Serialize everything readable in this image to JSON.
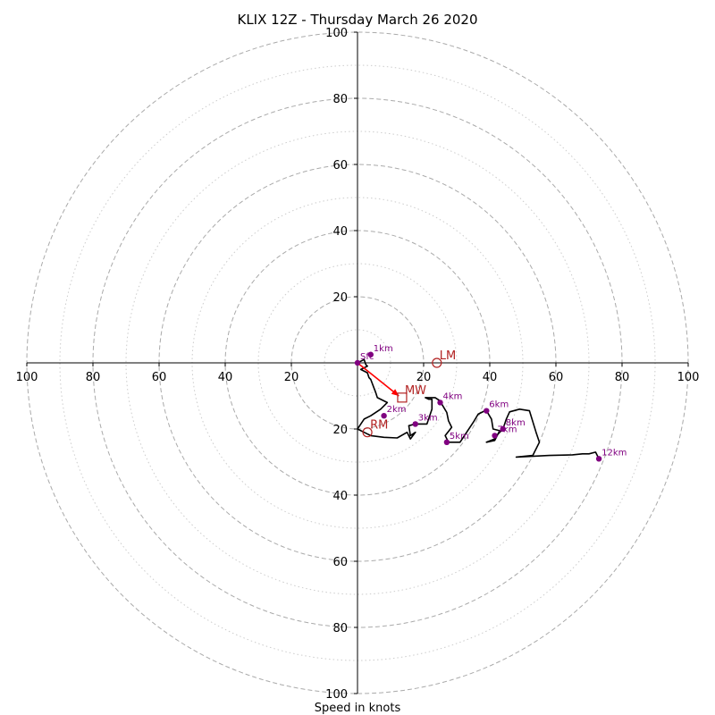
{
  "chart_data": {
    "type": "line",
    "title": "KLIX 12Z - Thursday March 26 2020",
    "xlabel": "Speed in knots",
    "ring_max": 100,
    "major_rings": [
      20,
      40,
      60,
      80,
      100
    ],
    "minor_rings": [
      10,
      30,
      50,
      70,
      90
    ],
    "x_tick_labels": [
      "100",
      "80",
      "60",
      "40",
      "20",
      "20",
      "40",
      "60",
      "80",
      "100"
    ],
    "x_tick_values": [
      -100,
      -80,
      -60,
      -40,
      -20,
      20,
      40,
      60,
      80,
      100
    ],
    "y_tick_labels": [
      "100",
      "80",
      "60",
      "40",
      "20",
      "20",
      "40",
      "60",
      "80",
      "100"
    ],
    "y_tick_values": [
      100,
      80,
      60,
      40,
      20,
      -20,
      -40,
      -60,
      -80,
      -100
    ],
    "hodograph_u": [
      0,
      2,
      2.5,
      3,
      1,
      3,
      3.5,
      4,
      5.5,
      6,
      9,
      7,
      4,
      2,
      1,
      0,
      2,
      3,
      4,
      8,
      12,
      15,
      16,
      17.5,
      16,
      15.5,
      17.5,
      19,
      21,
      22.5,
      22.5,
      21.5,
      20.5,
      23.5,
      25,
      25.5,
      27,
      27.5,
      28.5,
      26.5,
      27.5,
      31,
      33,
      35,
      36.5,
      38.5,
      39,
      40.5,
      41,
      43,
      41.5,
      39,
      41.5,
      42,
      44,
      45,
      46,
      49,
      52,
      54,
      55,
      53,
      48,
      58,
      65,
      68,
      70,
      72,
      73
    ],
    "hodograph_v": [
      0,
      1,
      -0.5,
      -1,
      -2,
      -3,
      -4.5,
      -5,
      -9,
      -10.5,
      -12,
      -14,
      -16,
      -17,
      -18.5,
      -20,
      -21,
      -21.5,
      -22,
      -22.5,
      -22.7,
      -21,
      -23,
      -21,
      -22,
      -19,
      -18.5,
      -18.5,
      -18.5,
      -14,
      -11,
      -11,
      -10.5,
      -10.5,
      -11.5,
      -12.5,
      -15,
      -17.5,
      -19.5,
      -22,
      -24,
      -24,
      -21,
      -18,
      -15.5,
      -14.5,
      -14.5,
      -17,
      -20,
      -20.5,
      -23.5,
      -24,
      -23,
      -22,
      -20,
      -17,
      -14.8,
      -14,
      -14.5,
      -21,
      -24,
      -28,
      -28.5,
      -28,
      -27.8,
      -27.5,
      -27.5,
      -27,
      -29
    ],
    "height_markers": [
      {
        "label": "Sfc",
        "u": 0,
        "v": 0
      },
      {
        "label": "1km",
        "u": 4,
        "v": 2.5
      },
      {
        "label": "2km",
        "u": 8,
        "v": -16
      },
      {
        "label": "3km",
        "u": 17.5,
        "v": -18.5
      },
      {
        "label": "4km",
        "u": 25,
        "v": -12
      },
      {
        "label": "5km",
        "u": 27,
        "v": -24
      },
      {
        "label": "6km",
        "u": 39,
        "v": -14.5
      },
      {
        "label": "7km",
        "u": 41.5,
        "v": -22
      },
      {
        "label": "8km",
        "u": 44,
        "v": -20
      },
      {
        "label": "12km",
        "u": 73,
        "v": -29
      }
    ],
    "storm_motions": [
      {
        "label": "LM",
        "u": 24,
        "v": 0,
        "marker": "circle"
      },
      {
        "label": "MW",
        "u": 13.5,
        "v": -10.5,
        "marker": "square"
      },
      {
        "label": "RM",
        "u": 3,
        "v": -21,
        "marker": "circle"
      }
    ],
    "shear_arrow": {
      "from_u": 0,
      "from_v": 0,
      "to_u": 12.5,
      "to_v": -10
    },
    "colors": {
      "hodograph": "#000000",
      "markers": "#800080",
      "storm_motion": "#b22222",
      "arrow": "#ff0000",
      "major_ring": "#aaaaaa",
      "minor_ring": "#cccccc"
    }
  }
}
